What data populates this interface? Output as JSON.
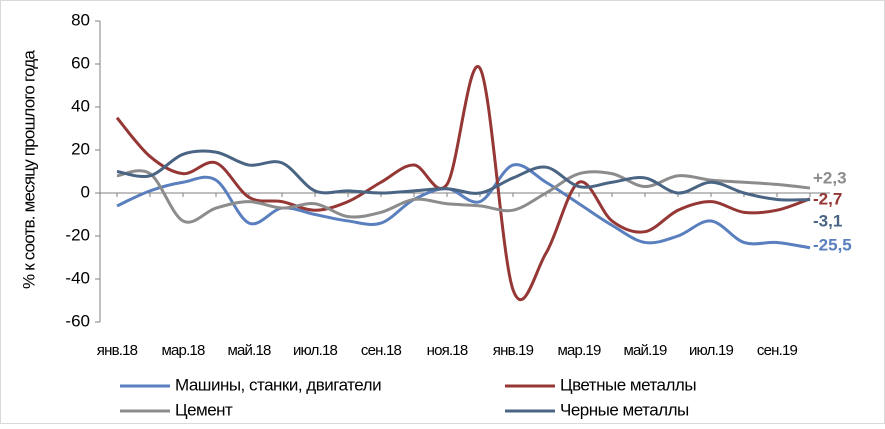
{
  "chart_data": {
    "type": "line",
    "y_label": "% к соотв. месяцу прошлого года",
    "categories": [
      "янв.18",
      null,
      "мар.18",
      null,
      "май.18",
      null,
      "июл.18",
      null,
      "сен.18",
      null,
      "ноя.18",
      null,
      "янв.19",
      null,
      "мар.19",
      null,
      "май.19",
      null,
      "июл.19",
      null,
      "сен.19",
      null
    ],
    "series": [
      {
        "name": "Машины, станки, двигатели",
        "color": "#5a7fbe",
        "values": [
          -6,
          1,
          5,
          6,
          -14,
          -7,
          -10,
          -13,
          -14,
          -3,
          2,
          -4,
          13,
          5,
          -5,
          -15,
          -23,
          -20,
          -13,
          -23,
          -23,
          -25.5
        ],
        "value_labels": [
          null,
          null,
          null,
          null,
          null,
          null,
          null,
          null,
          null,
          null,
          null,
          null,
          null,
          null,
          null,
          null,
          null,
          null,
          null,
          null,
          null,
          "-25,5"
        ]
      },
      {
        "name": "Цветные металлы",
        "color": "#953735",
        "values": [
          35,
          17,
          9,
          14,
          -2,
          -4,
          -8,
          -4,
          5,
          13,
          4,
          58,
          -45,
          -28,
          5,
          -13,
          -18,
          -8,
          -4,
          -9,
          -8,
          -2.7
        ],
        "value_labels": [
          null,
          null,
          null,
          null,
          null,
          null,
          null,
          null,
          null,
          null,
          null,
          null,
          null,
          null,
          null,
          null,
          null,
          null,
          null,
          null,
          null,
          "-2,7"
        ]
      },
      {
        "name": "Цемент",
        "color": "#8c8c8c",
        "values": [
          8,
          9,
          -13,
          -7,
          -4,
          -7,
          -5,
          -11,
          -9,
          -3,
          -5,
          -6,
          -8,
          0,
          9,
          9,
          3,
          8,
          6,
          5,
          4,
          2.3
        ],
        "value_labels": [
          null,
          null,
          null,
          null,
          null,
          null,
          null,
          null,
          null,
          null,
          null,
          null,
          null,
          null,
          null,
          null,
          null,
          null,
          null,
          null,
          null,
          "+2,3"
        ]
      },
      {
        "name": "Черные металлы",
        "color": "#4a6483",
        "values": [
          10,
          8,
          18,
          19,
          13,
          14,
          1,
          1,
          0,
          1,
          2,
          0,
          7,
          12,
          3,
          5,
          7,
          0,
          5,
          0,
          -3,
          -3.1
        ],
        "value_labels": [
          null,
          null,
          null,
          null,
          null,
          null,
          null,
          null,
          null,
          null,
          null,
          null,
          null,
          null,
          null,
          null,
          null,
          null,
          null,
          null,
          null,
          "-3,1"
        ]
      }
    ],
    "ylim": [
      -60,
      80
    ],
    "yticks": [
      -60,
      -40,
      -20,
      0,
      20,
      40,
      60,
      80
    ]
  }
}
